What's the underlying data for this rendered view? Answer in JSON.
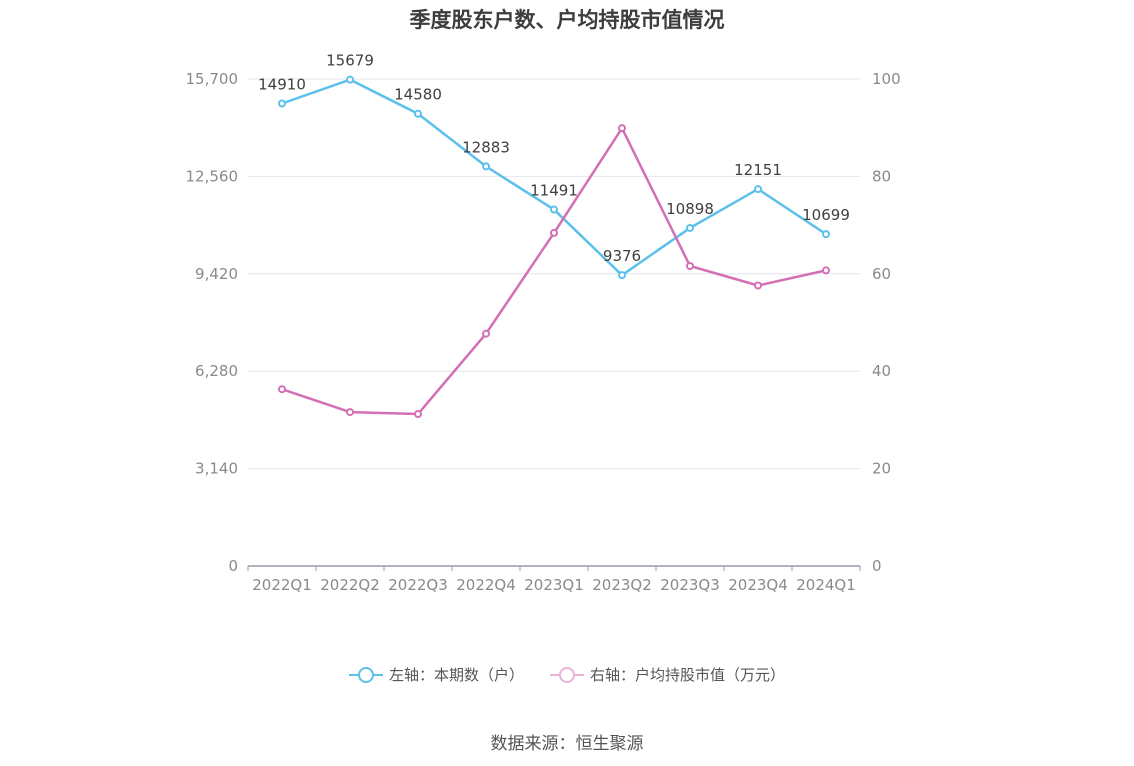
{
  "colors": {
    "series_left": "#5bc0eb",
    "series_right": "#d36fb4",
    "grid": "#e3e6f0",
    "axis": "#9a9aaa"
  },
  "legend": {
    "left_label": "左轴：本期数（户）",
    "right_label": "右轴：户均持股市值（万元）"
  },
  "source": "数据来源：恒生聚源",
  "chart_data": {
    "type": "line",
    "title": "季度股东户数、户均持股市值情况",
    "categories": [
      "2022Q1",
      "2022Q2",
      "2022Q3",
      "2022Q4",
      "2023Q1",
      "2023Q2",
      "2023Q3",
      "2023Q4",
      "2024Q1"
    ],
    "left_axis": {
      "range": [
        0,
        15700
      ],
      "ticks": [
        "0",
        "3,140",
        "6,280",
        "9,420",
        "12,560",
        "15,700"
      ]
    },
    "right_axis": {
      "range": [
        0,
        100
      ],
      "ticks": [
        "0",
        "20",
        "40",
        "60",
        "80",
        "100"
      ]
    },
    "grid": true,
    "legend_position": "bottom",
    "series": [
      {
        "name": "左轴：本期数（户）",
        "axis": "left",
        "values": [
          14910,
          15679,
          14580,
          12883,
          11491,
          9376,
          10898,
          12151,
          10699
        ],
        "labels": [
          "14910",
          "15679",
          "14580",
          "12883",
          "11491",
          "9376",
          "10898",
          "12151",
          "10699"
        ]
      },
      {
        "name": "右轴：户均持股市值（万元）",
        "axis": "right",
        "values": [
          36.3,
          31.6,
          31.2,
          47.7,
          68.4,
          89.9,
          61.6,
          57.6,
          60.7
        ]
      }
    ]
  }
}
